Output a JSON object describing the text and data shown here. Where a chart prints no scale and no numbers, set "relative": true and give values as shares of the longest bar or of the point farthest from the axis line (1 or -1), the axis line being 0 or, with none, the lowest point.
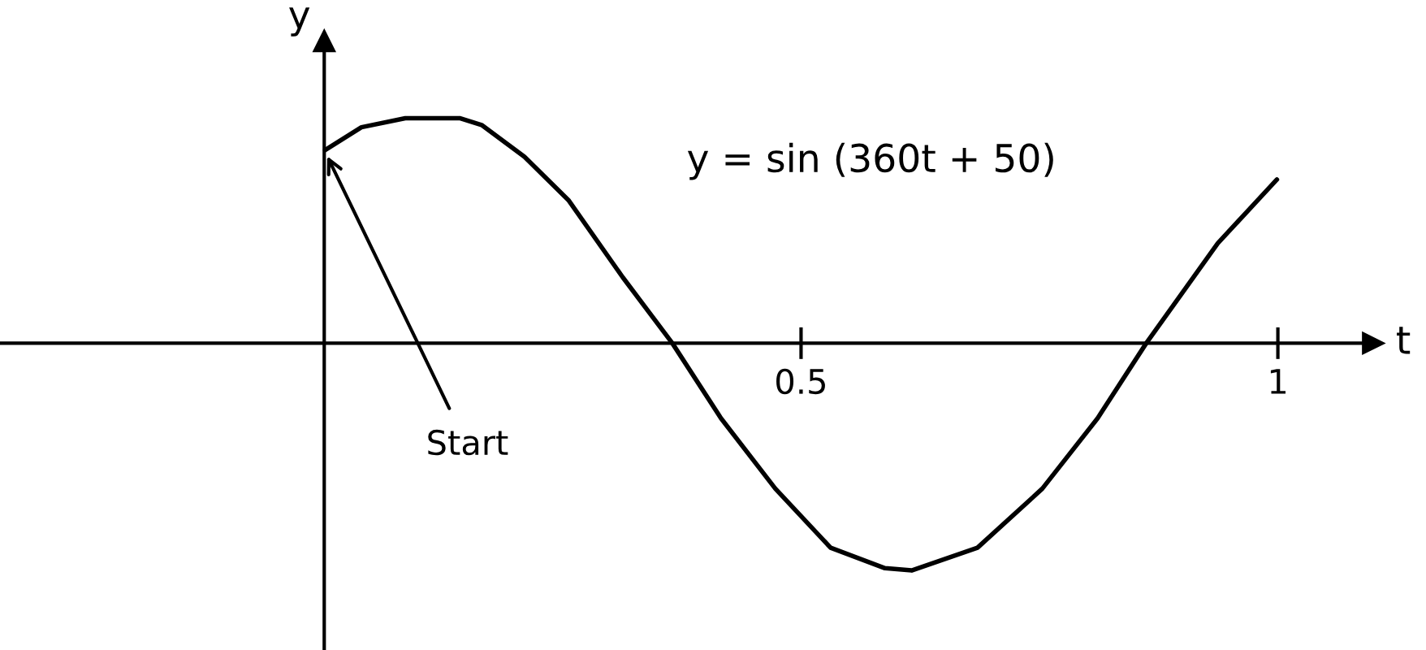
{
  "chart_data": {
    "type": "line",
    "relative": true,
    "x": [
      0.001,
      0.039,
      0.085,
      0.142,
      0.165,
      0.21,
      0.256,
      0.313,
      0.365,
      0.416,
      0.473,
      0.531,
      0.588,
      0.616,
      0.685,
      0.753,
      0.811,
      0.862,
      0.937,
      0.999
    ],
    "series": [
      {
        "color": "#000000",
        "values": [
          0.85,
          0.95,
          0.99,
          0.99,
          0.96,
          0.82,
          0.63,
          0.29,
          0,
          -0.33,
          -0.64,
          -0.9,
          -0.99,
          -1,
          -0.9,
          -0.64,
          -0.33,
          0,
          0.44,
          0.72
        ]
      }
    ],
    "xlim": [
      -0.34,
      1.1
    ],
    "xticks": [
      0.5,
      1
    ],
    "xlabel": "t",
    "ylabel": "y",
    "annotations": [
      "y = sin (360t + 50)",
      {
        "text": "Start",
        "x": 0,
        "y": 0.85
      }
    ],
    "grid": false,
    "legend": false,
    "marker": "none",
    "line_style": "solid"
  }
}
